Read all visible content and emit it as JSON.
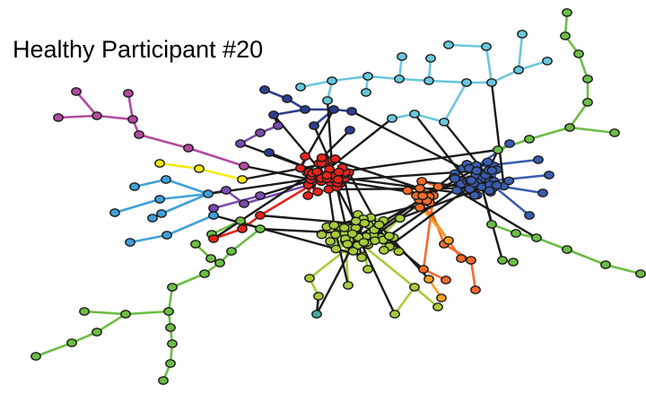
{
  "title": "Healthy Participant #20",
  "colors": {
    "red": "#e8231c",
    "blue": "#3a5db0",
    "green": "#a6cc3a",
    "orange": "#f26b2b",
    "dark_green": "#6cbd44",
    "light_blue": "#69c7dc",
    "navy": "#2c3f8c",
    "purple": "#7a4bb0",
    "magenta": "#b24b9f",
    "sky_blue": "#3fa0d8",
    "yellow": "#f5ea14",
    "amber": "#f5a21e",
    "teal": "#4aa8a0",
    "inter_module_edge": "#1a1a1a",
    "node_outline": "#1a1a1a"
  }
}
